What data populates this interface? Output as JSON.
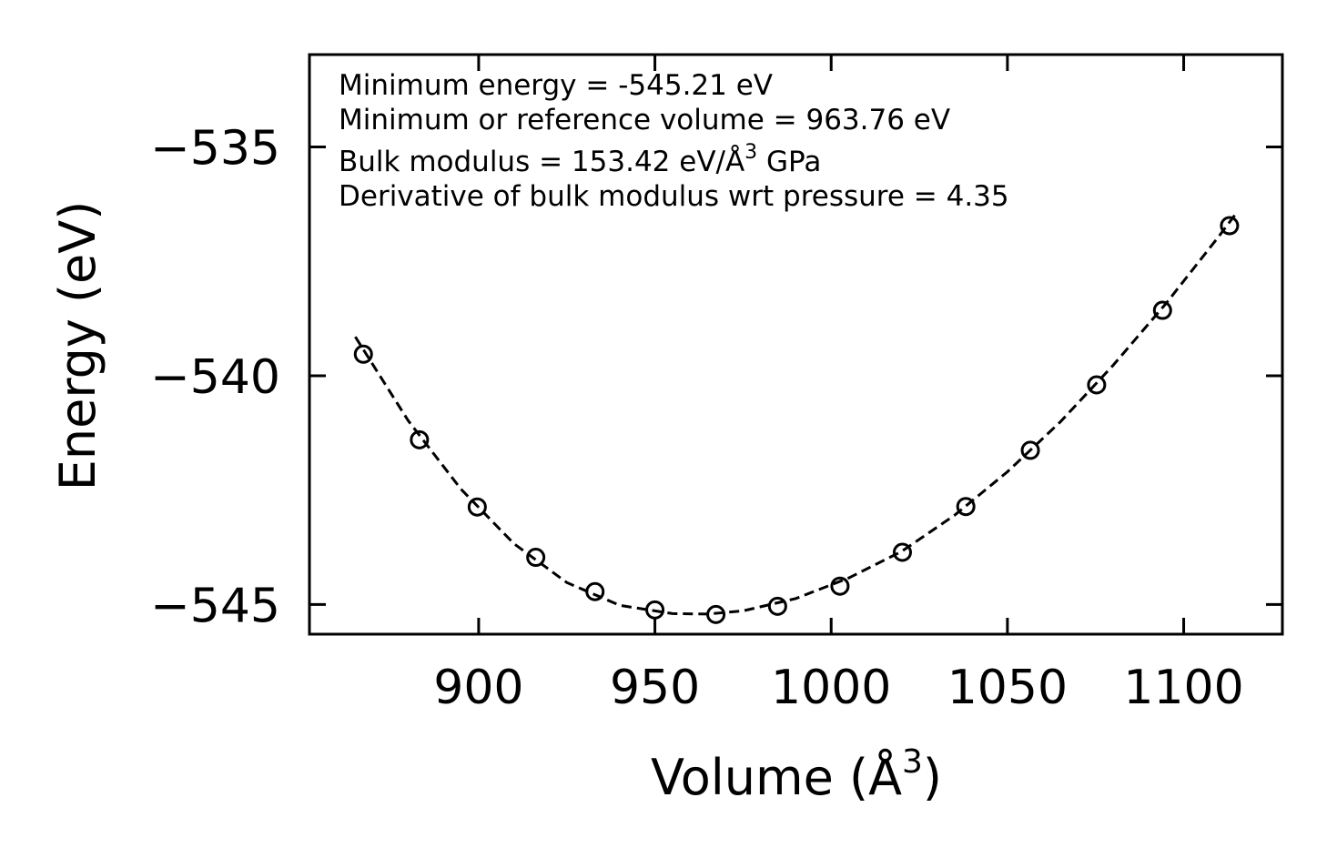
{
  "chart_data": {
    "type": "scatter",
    "xlabel": "Volume (Å",
    "xlabel_sup": "3",
    "xlabel_end": ")",
    "ylabel": "Energy (eV)",
    "xlim": [
      852,
      1128
    ],
    "ylim": [
      -545.65,
      -532.98
    ],
    "xticks": [
      900,
      950,
      1000,
      1050,
      1100
    ],
    "xtick_labels": [
      "900",
      "950",
      "1000",
      "1050",
      "1100"
    ],
    "yticks": [
      -535,
      -540,
      -545
    ],
    "ytick_labels": [
      "−535",
      "−540",
      "−545"
    ],
    "series": [
      {
        "name": "data",
        "marker": "open-circle",
        "x": [
          867.3,
          883.2,
          899.6,
          916.2,
          933.0,
          950.0,
          967.3,
          984.8,
          1002.5,
          1020.2,
          1038.2,
          1056.5,
          1075.3,
          1094.0,
          1113.0
        ],
        "y": [
          -539.53,
          -541.4,
          -542.87,
          -543.97,
          -544.72,
          -545.12,
          -545.22,
          -545.04,
          -544.6,
          -543.86,
          -542.86,
          -541.63,
          -540.2,
          -538.57,
          -536.72
        ]
      },
      {
        "name": "fit",
        "style": "dashed",
        "x": [
          865,
          880,
          895,
          910,
          925,
          940,
          955,
          965,
          975,
          990,
          1005,
          1020,
          1035,
          1050,
          1065,
          1080,
          1095,
          1110,
          1115
        ],
        "y": [
          -539.15,
          -540.98,
          -542.48,
          -543.67,
          -544.52,
          -545.02,
          -545.2,
          -545.21,
          -545.14,
          -544.87,
          -544.42,
          -543.84,
          -543.05,
          -542.1,
          -541.01,
          -539.77,
          -538.42,
          -536.95,
          -536.44
        ]
      }
    ],
    "annotations": [
      "Minimum energy = -545.21 eV",
      "Minimum or reference volume = 963.76 eV",
      "Bulk modulus = 153.42 eV/Å",
      "3",
      " GPa",
      "Derivative of bulk modulus wrt pressure = 4.35"
    ]
  }
}
